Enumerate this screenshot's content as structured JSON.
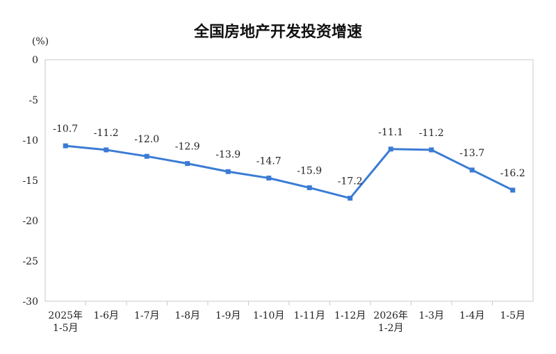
{
  "chart_data": {
    "type": "line",
    "title": "全国房地产开发投资增速",
    "ylabel": "(%)",
    "xlabel": "",
    "ylim": [
      -30,
      0
    ],
    "yticks": [
      "0",
      "-5",
      "-10",
      "-15",
      "-20",
      "-25",
      "-30"
    ],
    "grid": false,
    "legend": "none",
    "line_color": "#3a7bd5",
    "categories": [
      [
        "2025年",
        "1-5月"
      ],
      [
        "1-6月"
      ],
      [
        "1-7月"
      ],
      [
        "1-8月"
      ],
      [
        "1-9月"
      ],
      [
        "1-10月"
      ],
      [
        "1-11月"
      ],
      [
        "1-12月"
      ],
      [
        "2026年",
        "1-2月"
      ],
      [
        "1-3月"
      ],
      [
        "1-4月"
      ],
      [
        "1-5月"
      ]
    ],
    "values": [
      -10.7,
      -11.2,
      -12.0,
      -12.9,
      -13.9,
      -14.7,
      -15.9,
      -17.2,
      -11.1,
      -11.2,
      -13.7,
      -16.2
    ],
    "data_labels": [
      "-10.7",
      "-11.2",
      "-12.0",
      "-12.9",
      "-13.9",
      "-14.7",
      "-15.9",
      "-17.2",
      "-11.1",
      "-11.2",
      "-13.7",
      "-16.2"
    ]
  }
}
